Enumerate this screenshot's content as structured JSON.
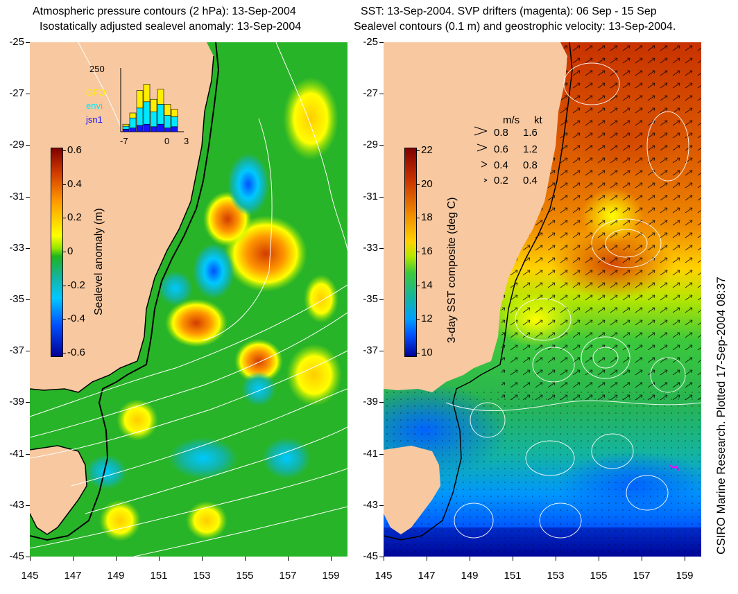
{
  "left_panel": {
    "title_line1": "Atmospheric pressure contours (2 hPa): 13-Sep-2004",
    "title_line2": "Isostatically adjusted sealevel anomaly: 13-Sep-2004",
    "colorbar": {
      "label": "Sealevel anomaly (m)",
      "ticks": [
        "0.6",
        "0.4",
        "0.2",
        "0",
        "-0.2",
        "-0.4",
        "-0.6"
      ],
      "colors": [
        "#800000",
        "#d23c00",
        "#ff9600",
        "#ffff00",
        "#96e600",
        "#1eb41e",
        "#14b4a0",
        "#00c8ff",
        "#0050ff",
        "#000096"
      ]
    },
    "inset": {
      "ymax_label": "250",
      "x_ticks": [
        "-7",
        "0",
        "3"
      ],
      "legend": [
        {
          "name": "GFO",
          "color": "#ffee00"
        },
        {
          "name": "envi",
          "color": "#00e8ff"
        },
        {
          "name": "jsn1",
          "color": "#1414ff"
        }
      ],
      "bars": [
        {
          "gfo": 8,
          "envi": 12,
          "jsn1": 10
        },
        {
          "gfo": 20,
          "envi": 40,
          "jsn1": 15
        },
        {
          "gfo": 70,
          "envi": 70,
          "jsn1": 25
        },
        {
          "gfo": 70,
          "envi": 90,
          "jsn1": 30
        },
        {
          "gfo": 50,
          "envi": 60,
          "jsn1": 20
        },
        {
          "gfo": 60,
          "envi": 80,
          "jsn1": 30
        },
        {
          "gfo": 45,
          "envi": 50,
          "jsn1": 15
        },
        {
          "gfo": 30,
          "envi": 40,
          "jsn1": 20
        }
      ]
    }
  },
  "right_panel": {
    "title_line1": "SST: 13-Sep-2004. SVP drifters (magenta): 06 Sep - 15 Sep",
    "title_line2": "Sealevel contours (0.1 m) and geostrophic velocity: 13-Sep-2004.",
    "colorbar": {
      "label": "3-day SST composite (deg C)",
      "ticks": [
        "22",
        "20",
        "18",
        "16",
        "14",
        "12",
        "10"
      ],
      "colors": [
        "#800000",
        "#c83200",
        "#f08c00",
        "#ffd200",
        "#b4e600",
        "#3cc83c",
        "#14b4a0",
        "#00a0ff",
        "#0050ff",
        "#000096"
      ]
    },
    "speed_legend": {
      "header_ms": "m/s",
      "header_kt": "kt",
      "rows": [
        {
          "ms": "0.8",
          "kt": "1.6"
        },
        {
          "ms": "0.6",
          "kt": "1.2"
        },
        {
          "ms": "0.4",
          "kt": "0.8"
        },
        {
          "ms": "0.2",
          "kt": "0.4"
        }
      ]
    }
  },
  "axes": {
    "lat_labels": [
      "-25",
      "-27",
      "-29",
      "-31",
      "-33",
      "-35",
      "-37",
      "-39",
      "-41",
      "-43",
      "-45"
    ],
    "lon_labels": [
      "145",
      "147",
      "149",
      "151",
      "153",
      "155",
      "157",
      "159"
    ]
  },
  "credit": "CSIRO Marine Research. Plotted 17-Sep-2004 08:37",
  "colors": {
    "land": "#f8c8a0",
    "ocean_mid": "#28b428",
    "coast_line": "#000000"
  }
}
